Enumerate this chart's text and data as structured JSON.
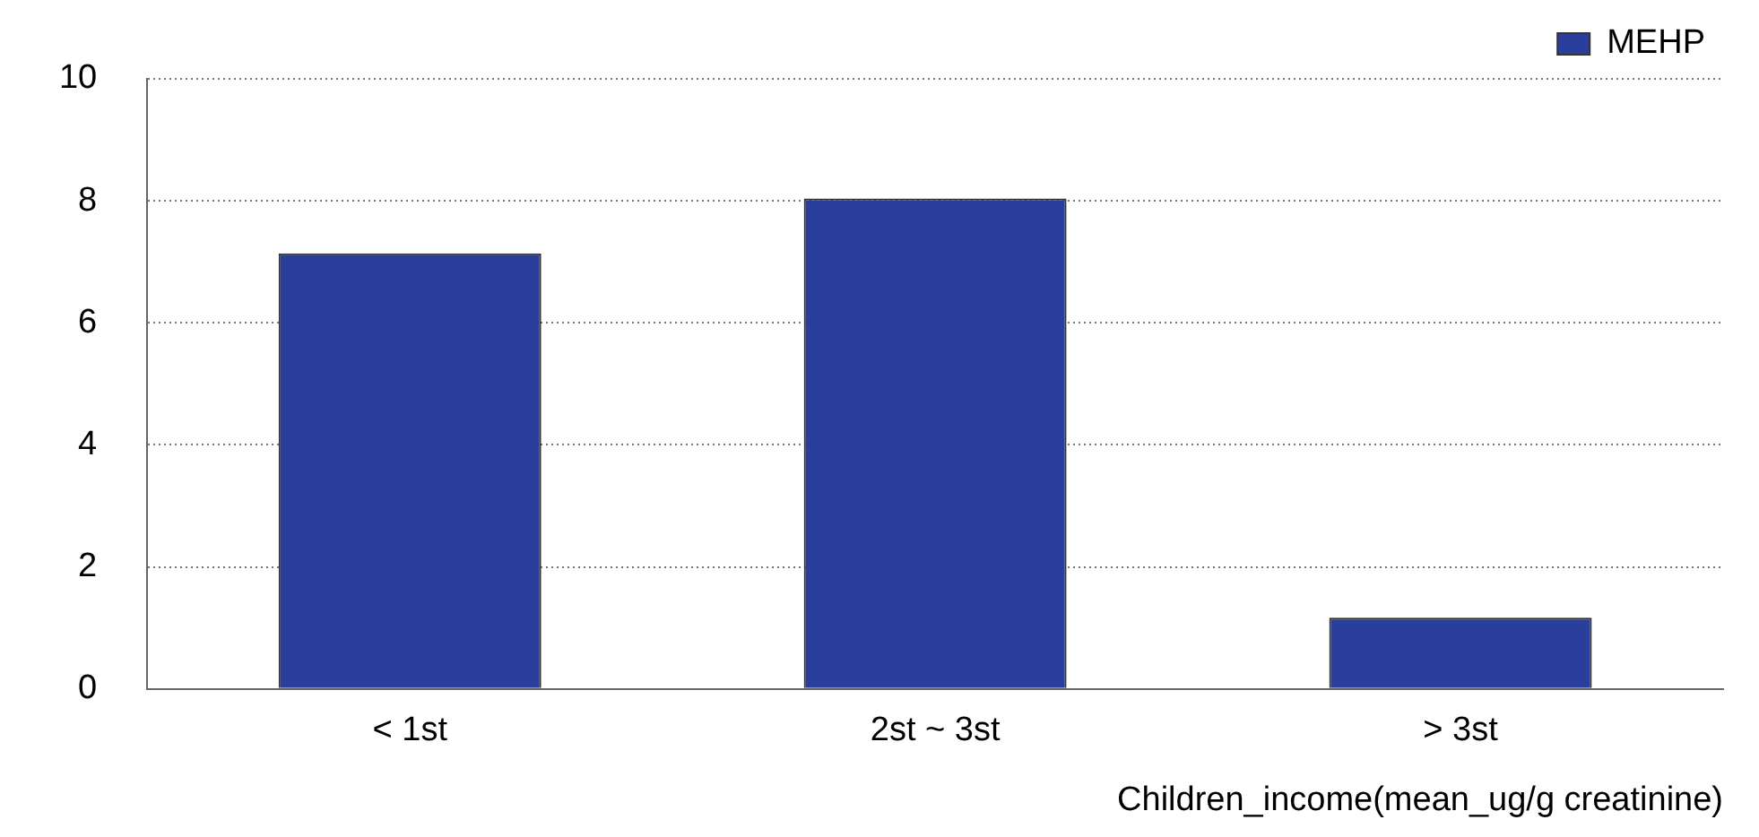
{
  "chart_data": {
    "type": "bar",
    "xlabel": "Children_income(mean_ug/g creatinine)",
    "categories": [
      "< 1st",
      "2st ~ 3st",
      "> 3st"
    ],
    "series": [
      {
        "name": "MEHP",
        "color": "#2a3f9c",
        "values": [
          7.14,
          8.04,
          1.17
        ]
      }
    ],
    "ylim": [
      0,
      10
    ],
    "yticks": [
      0,
      2,
      4,
      6,
      8,
      10
    ],
    "grid": "y",
    "legend": "top right"
  }
}
